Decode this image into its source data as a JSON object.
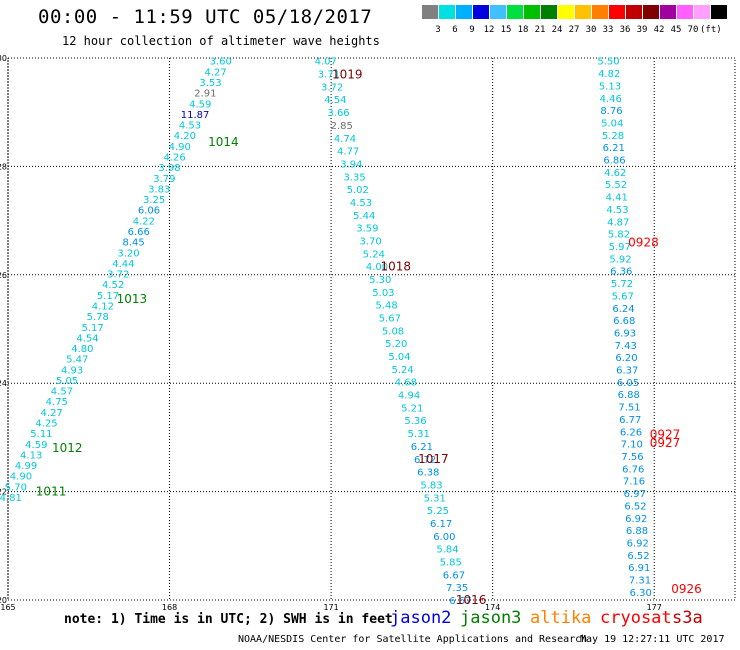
{
  "header": {
    "title": "00:00 - 11:59 UTC 05/18/2017",
    "subtitle": "12 hour collection of altimeter wave heights"
  },
  "color_scale": {
    "colors": [
      "#808080",
      "#00e0e0",
      "#00b0ff",
      "#0000e0",
      "#40c0ff",
      "#00e040",
      "#00c000",
      "#008000",
      "#ffff00",
      "#ffc000",
      "#ff8000",
      "#ff0000",
      "#c00000",
      "#800000",
      "#a000a0",
      "#ff60ff",
      "#ffa0ff",
      "#000000"
    ],
    "labels": [
      "3",
      "6",
      "9",
      "12",
      "15",
      "18",
      "21",
      "24",
      "27",
      "30",
      "33",
      "36",
      "39",
      "42",
      "45",
      "70",
      "(ft)"
    ]
  },
  "legend": {
    "items": [
      {
        "name": "jason2",
        "color": "#0000e0"
      },
      {
        "name": "jason3",
        "color": "#008000"
      },
      {
        "name": "altika",
        "color": "#ff8000"
      },
      {
        "name": "cryosat",
        "color": "#ff0000"
      },
      {
        "name": "s3a",
        "color": "#c00000"
      }
    ]
  },
  "footer": {
    "note": "note: 1) Time is in UTC; 2) SWH is in feet",
    "credit": "NOAA/NESDIS Center for Satellite Applications and Research",
    "timestamp": "May 19 12:27:11 UTC 2017"
  },
  "chart_data": {
    "type": "scatter",
    "x_ticks": [
      "165",
      "168",
      "171",
      "174",
      "177"
    ],
    "y_ticks": [
      "20",
      "22",
      "24",
      "26",
      "28",
      "30"
    ],
    "xlim": [
      165,
      178.5
    ],
    "ylim": [
      20,
      30
    ],
    "grid": true,
    "time_labels": [
      {
        "text": "1019",
        "x": 171.3,
        "y": 29.7,
        "color": "#800000"
      },
      {
        "text": "1014",
        "x": 169.0,
        "y": 28.45,
        "color": "#008000"
      },
      {
        "text": "1018",
        "x": 172.2,
        "y": 26.15,
        "color": "#800000"
      },
      {
        "text": "1013",
        "x": 167.3,
        "y": 25.55,
        "color": "#008000"
      },
      {
        "text": "1012",
        "x": 166.1,
        "y": 22.8,
        "color": "#008000"
      },
      {
        "text": "1011",
        "x": 165.8,
        "y": 22.0,
        "color": "#008000"
      },
      {
        "text": "1017",
        "x": 172.9,
        "y": 22.6,
        "color": "#800000"
      },
      {
        "text": "1016",
        "x": 173.6,
        "y": 20.0,
        "color": "#800000"
      },
      {
        "text": "0928",
        "x": 176.8,
        "y": 26.6,
        "color": "#ff0000"
      },
      {
        "text": "0927",
        "x": 177.2,
        "y": 23.05,
        "color": "#ff0000"
      },
      {
        "text": "0927",
        "x": 177.2,
        "y": 22.9,
        "color": "#ff0000"
      },
      {
        "text": "0926",
        "x": 177.6,
        "y": 20.2,
        "color": "#ff0000"
      }
    ],
    "series": [
      {
        "name": "jason3",
        "track": [
          [
            168.95,
            29.95
          ],
          [
            165.05,
            21.9
          ]
        ],
        "values": [
          "3.60",
          "4.27",
          "3.53",
          "2.91",
          "4.59",
          "11.87",
          "4.53",
          "4.20",
          "4.90",
          "4.26",
          "3.98",
          "3.79",
          "3.83",
          "3.25",
          "6.06",
          "4.22",
          "6.66",
          "8.45",
          "3.20",
          "4.44",
          "3.72",
          "4.52",
          "5.17",
          "4.12",
          "5.78",
          "5.17",
          "4.54",
          "4.80",
          "5.47",
          "4.93",
          "5.05",
          "4.57",
          "4.75",
          "4.27",
          "4.25",
          "5.11",
          "4.59",
          "4.13",
          "4.99",
          "4.90",
          "5.70",
          "4.81"
        ]
      },
      {
        "name": "s3a",
        "track": [
          [
            170.9,
            29.95
          ],
          [
            173.4,
            20.0
          ]
        ],
        "values": [
          "4.07",
          "3.71",
          "3.72",
          "4.54",
          "3.66",
          "2.85",
          "4.74",
          "4.77",
          "3.94",
          "3.35",
          "5.02",
          "4.53",
          "5.44",
          "3.59",
          "3.70",
          "5.24",
          "4.00",
          "5.30",
          "5.03",
          "5.48",
          "5.67",
          "5.08",
          "5.20",
          "5.04",
          "5.24",
          "4.68",
          "4.94",
          "5.21",
          "5.36",
          "5.31",
          "6.21",
          "6.72",
          "6.38",
          "5.83",
          "5.31",
          "5.25",
          "6.17",
          "6.00",
          "5.84",
          "5.85",
          "6.67",
          "7.35",
          "6.67"
        ]
      },
      {
        "name": "cryosat",
        "track": [
          [
            176.15,
            29.95
          ],
          [
            176.75,
            20.15
          ]
        ],
        "values": [
          "5.50",
          "4.82",
          "5.13",
          "4.46",
          "8.76",
          "5.04",
          "5.28",
          "6.21",
          "6.86",
          "4.62",
          "5.52",
          "4.41",
          "4.53",
          "4.87",
          "5.82",
          "5.97",
          "5.92",
          "6.36",
          "5.72",
          "5.67",
          "6.24",
          "6.68",
          "6.93",
          "7.43",
          "6.20",
          "6.37",
          "6.05",
          "6.88",
          "7.51",
          "6.77",
          "6.26",
          "7.10",
          "7.56",
          "6.76",
          "7.16",
          "6.97",
          "6.52",
          "6.92",
          "6.88",
          "6.92",
          "6.52",
          "6.91",
          "7.31",
          "6.30"
        ]
      }
    ]
  }
}
